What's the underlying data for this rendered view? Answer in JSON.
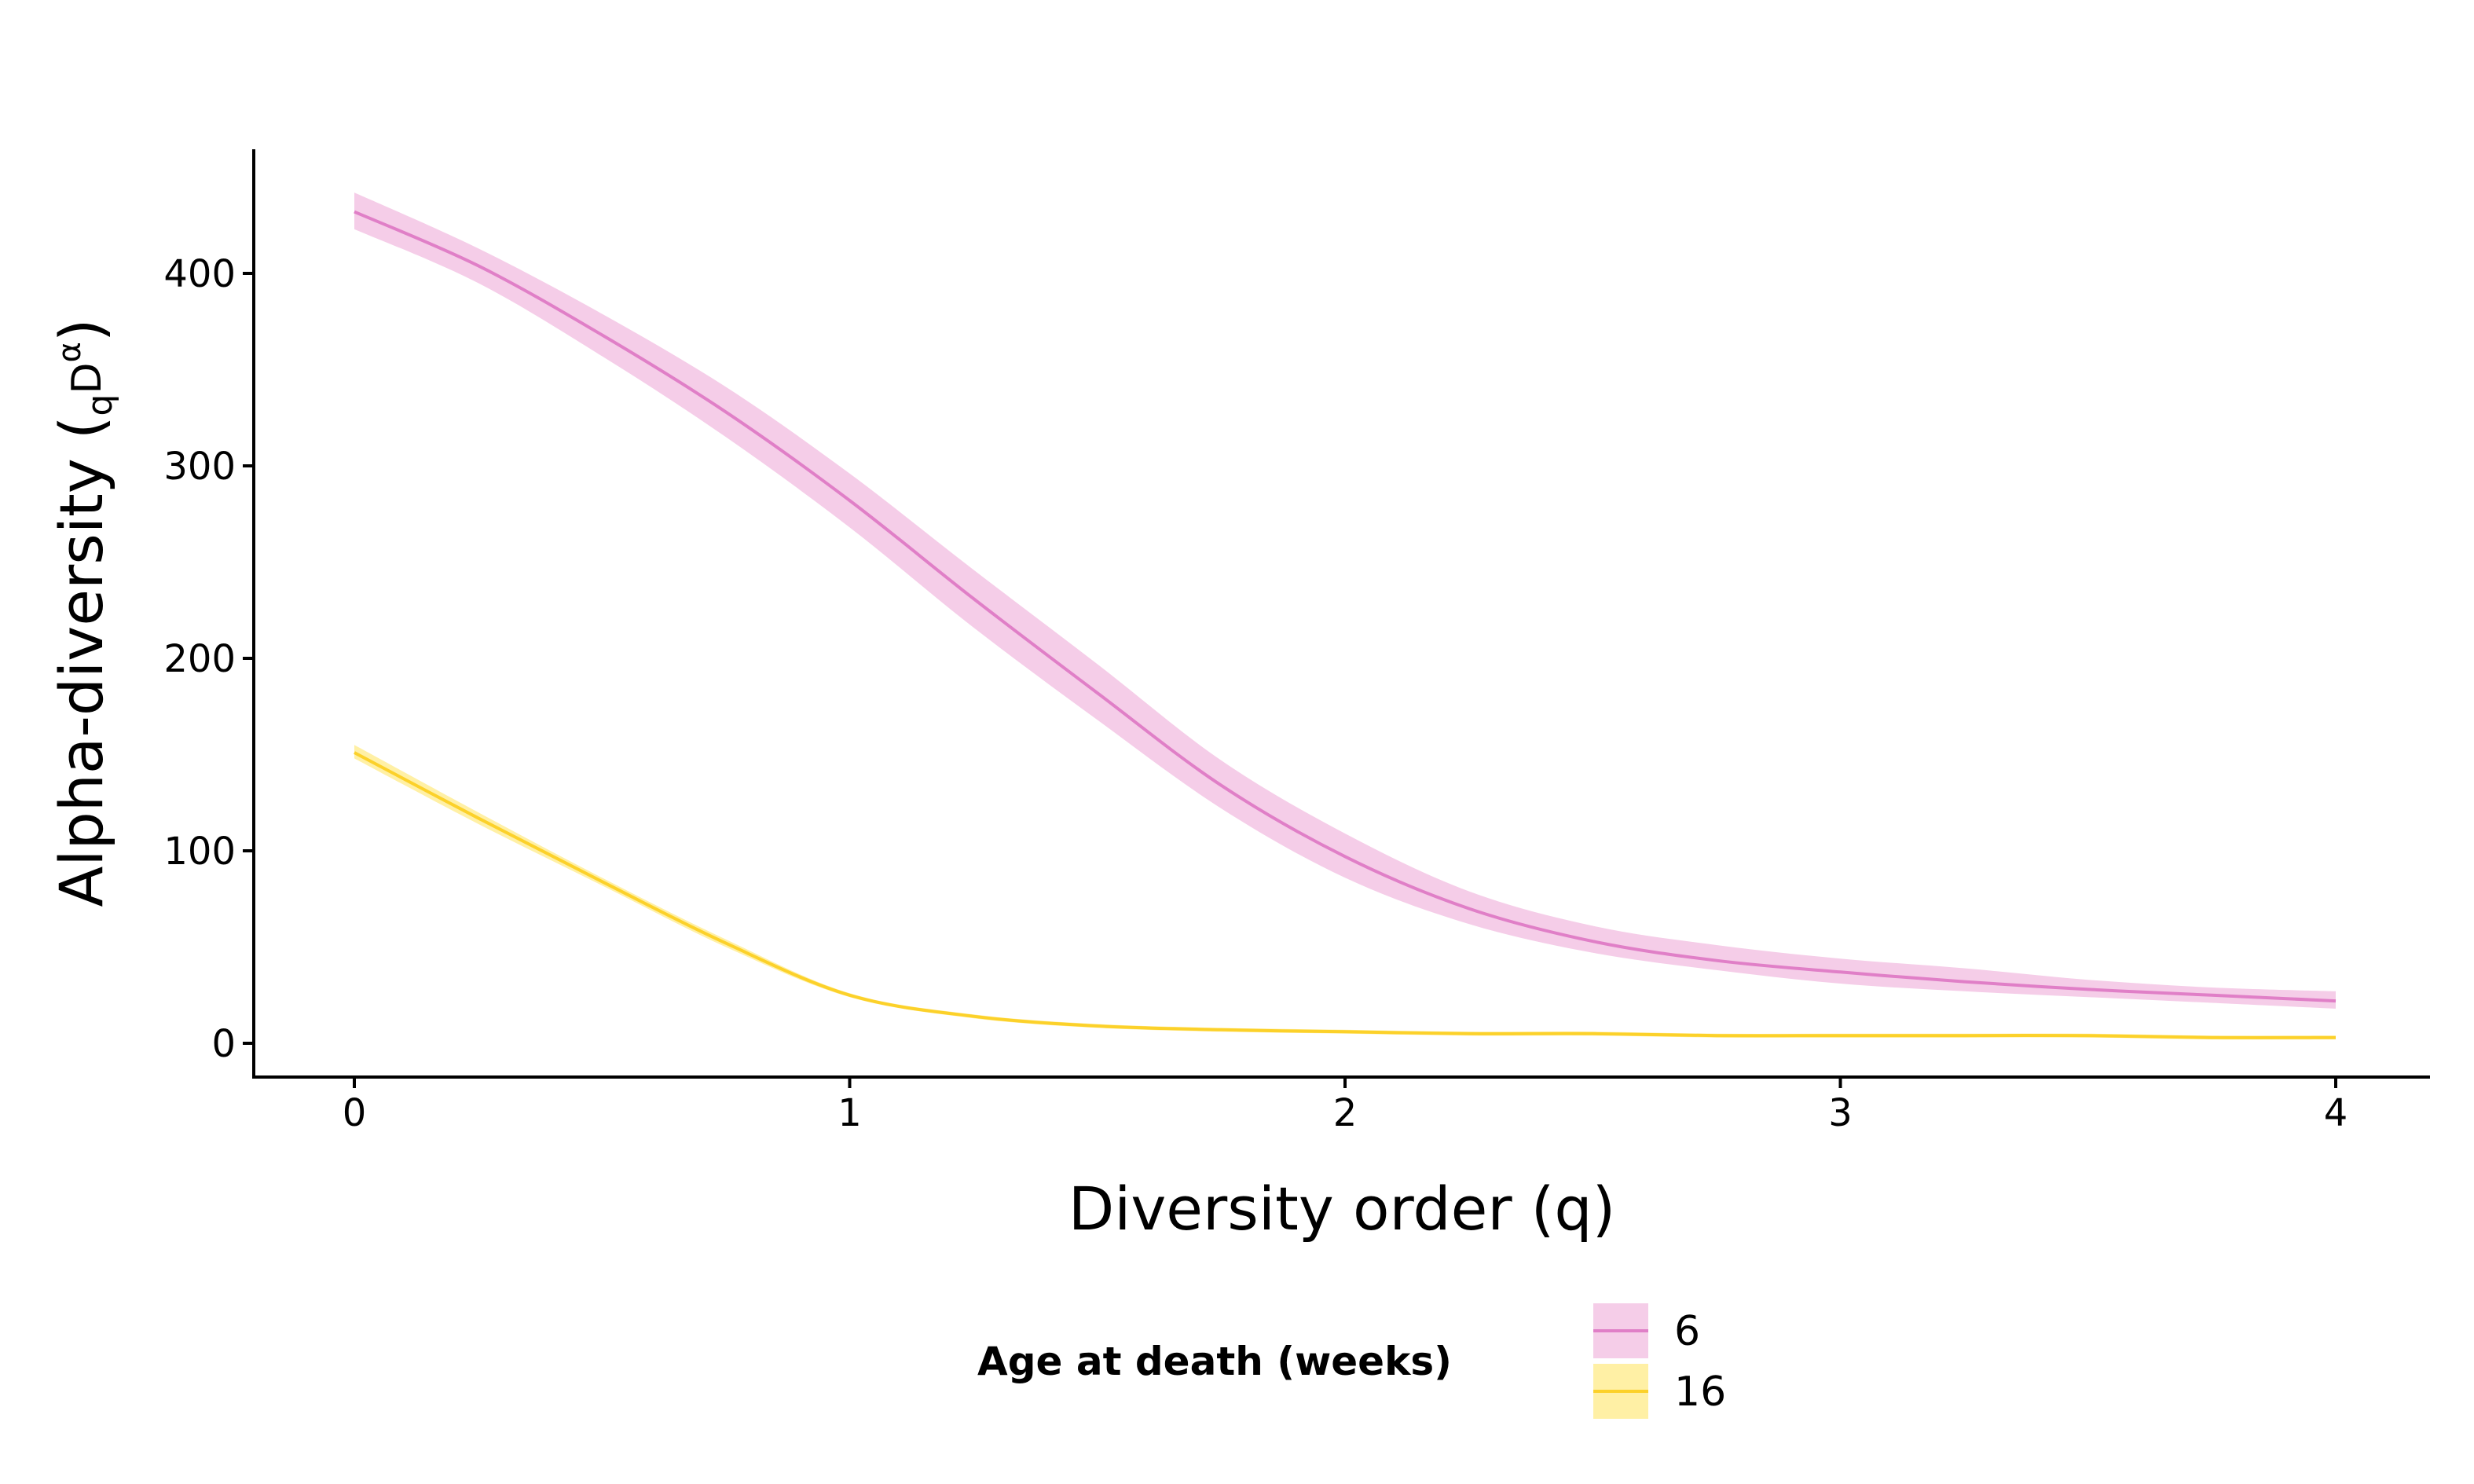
{
  "chart_data": {
    "type": "line",
    "title": "",
    "xlabel": "Diversity order (q)",
    "ylabel": {
      "main": "Alpha-diversity (",
      "subscript": "q",
      "base": "D",
      "superscript": "α",
      "close": ")"
    },
    "xlim": [
      -0.2,
      4.2
    ],
    "ylim": [
      -18,
      465
    ],
    "x_ticks": [
      0,
      1,
      2,
      3,
      4
    ],
    "y_ticks": [
      0,
      100,
      200,
      300,
      400
    ],
    "grid": false,
    "legend": {
      "title": "Age at death (weeks)",
      "position": "bottom"
    },
    "x": [
      0,
      0.25,
      0.5,
      0.75,
      1,
      1.25,
      1.5,
      1.75,
      2,
      2.25,
      2.5,
      2.75,
      3,
      3.25,
      3.5,
      3.75,
      4
    ],
    "series": [
      {
        "name": "6",
        "color": "#e07fc7",
        "ribbon_color": "#f5cde8",
        "values": [
          432,
          404,
          368,
          328,
          282,
          231,
          182,
          134,
          97,
          70,
          53,
          43,
          37,
          32,
          28,
          25,
          22
        ],
        "lower": [
          423,
          395,
          357,
          315,
          268,
          216,
          168,
          122,
          86,
          62,
          47,
          38,
          31,
          27,
          24,
          21,
          18
        ],
        "upper": [
          442,
          413,
          379,
          341,
          296,
          246,
          197,
          147,
          109,
          79,
          61,
          51,
          44,
          39,
          33,
          29,
          27
        ]
      },
      {
        "name": "16",
        "color": "#fcd12a",
        "ribbon_color": "#fff0a5",
        "values": [
          151,
          117,
          84,
          52,
          25,
          14,
          9,
          7,
          6,
          5,
          5,
          4,
          4,
          4,
          4,
          3,
          3
        ],
        "lower": [
          148,
          114,
          82,
          50,
          24,
          13,
          8,
          6,
          5,
          4,
          4,
          3,
          3,
          3,
          3,
          2,
          2
        ],
        "upper": [
          155,
          120,
          86,
          54,
          26,
          15,
          10,
          8,
          7,
          6,
          6,
          5,
          5,
          5,
          5,
          4,
          4
        ]
      }
    ]
  }
}
